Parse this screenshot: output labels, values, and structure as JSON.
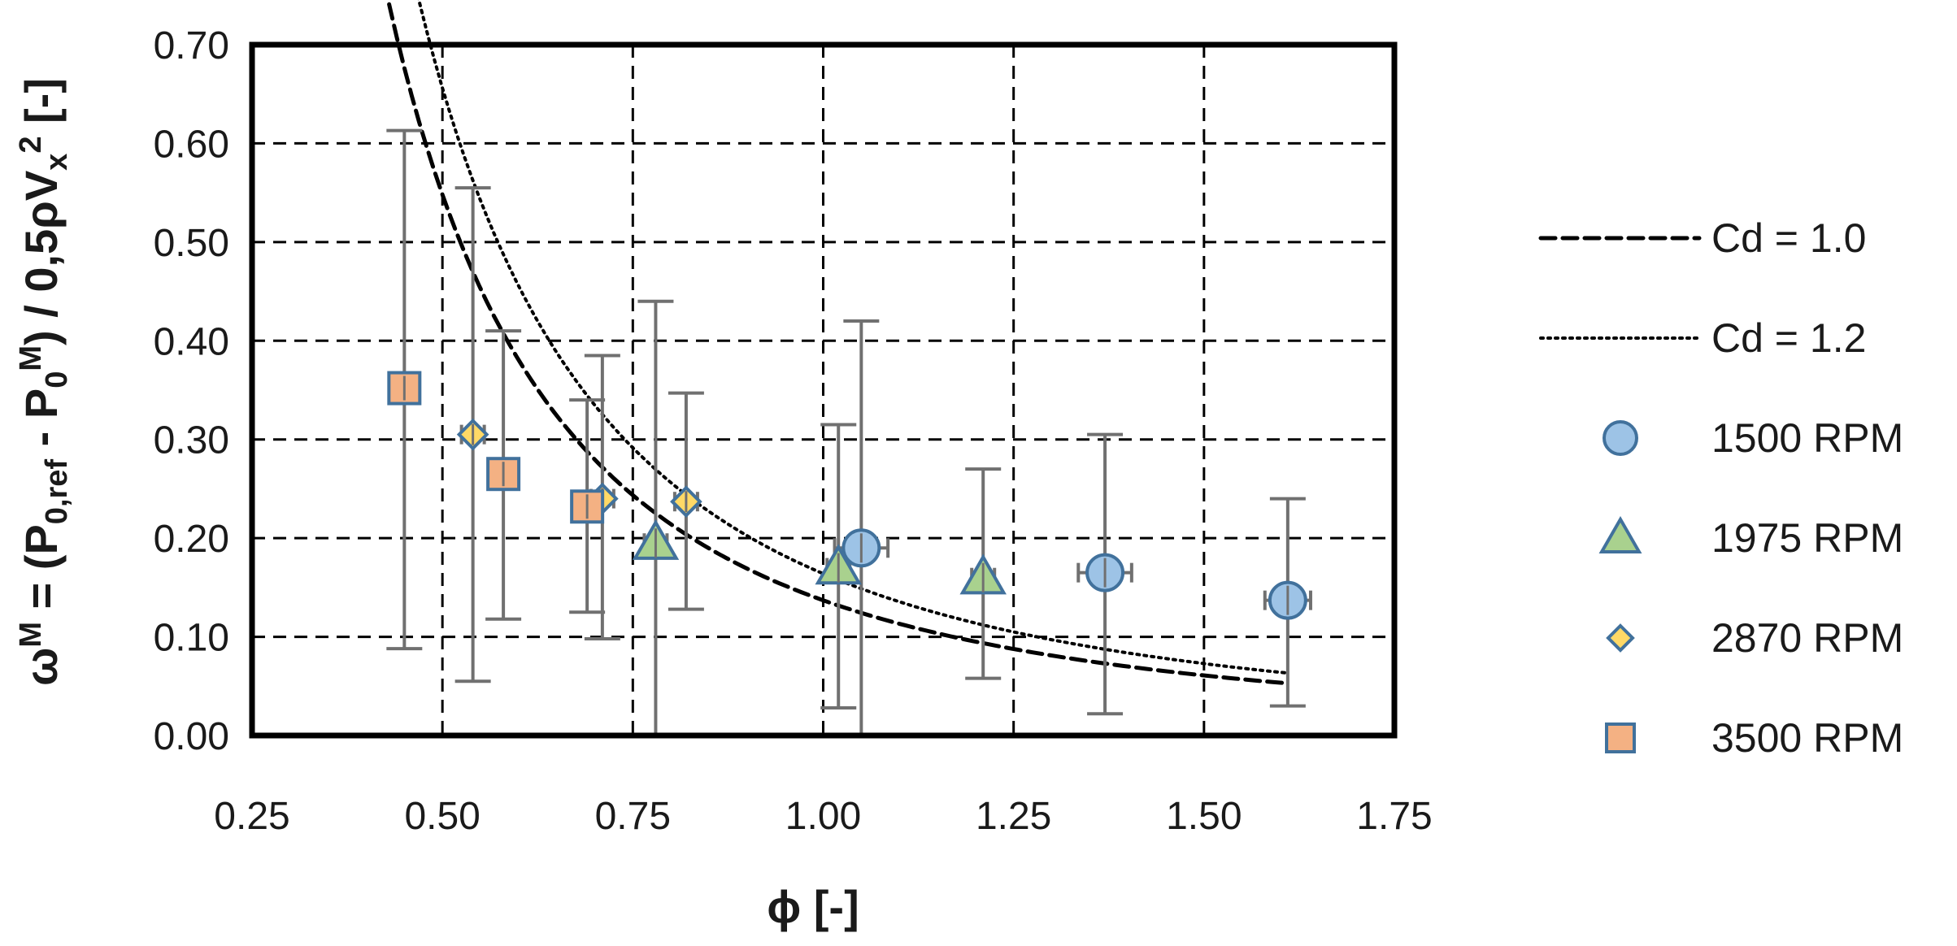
{
  "chart_data": {
    "type": "scatter",
    "xlabel": "ϕ [-]",
    "ylabel": "ω^M = (P_0,ref - P_0^M) / 0,5ρV_x^2 [-]",
    "xlim": [
      0.25,
      1.75
    ],
    "ylim": [
      0.0,
      0.7
    ],
    "x_ticks": [
      "0.25",
      "0.50",
      "0.75",
      "1.00",
      "1.25",
      "1.50",
      "1.75"
    ],
    "y_ticks": [
      "0.00",
      "0.10",
      "0.20",
      "0.30",
      "0.40",
      "0.50",
      "0.60",
      "0.70"
    ],
    "grid": true,
    "legend_position": "right",
    "curves": [
      {
        "name": "Cd = 1.0",
        "style": "dashed",
        "coef": 0.137
      },
      {
        "name": "Cd = 1.2",
        "style": "dotted",
        "coef": 0.164
      }
    ],
    "series": [
      {
        "name": "1500 RPM",
        "marker": "circle",
        "color": "#9DC3E6",
        "edge": "#41719C",
        "points": [
          {
            "x": 1.05,
            "y": 0.19,
            "ylow": 0.0,
            "yhigh": 0.42,
            "xerr": 0.035
          },
          {
            "x": 1.37,
            "y": 0.165,
            "ylow": 0.022,
            "yhigh": 0.305,
            "xerr": 0.035
          },
          {
            "x": 1.61,
            "y": 0.137,
            "ylow": 0.03,
            "yhigh": 0.24,
            "xerr": 0.03
          }
        ]
      },
      {
        "name": "1975 RPM",
        "marker": "triangle",
        "color": "#A9D18E",
        "edge": "#41719C",
        "points": [
          {
            "x": 0.78,
            "y": 0.195,
            "ylow": 0.0,
            "yhigh": 0.44,
            "xerr": 0.0
          },
          {
            "x": 1.02,
            "y": 0.17,
            "ylow": 0.028,
            "yhigh": 0.315,
            "xerr": 0.0
          },
          {
            "x": 1.21,
            "y": 0.16,
            "ylow": 0.058,
            "yhigh": 0.27,
            "xerr": 0.0
          }
        ]
      },
      {
        "name": "2870 RPM",
        "marker": "diamond",
        "color": "#FFD966",
        "edge": "#41719C",
        "points": [
          {
            "x": 0.54,
            "y": 0.305,
            "ylow": 0.055,
            "yhigh": 0.555,
            "xerr": 0.0
          },
          {
            "x": 0.71,
            "y": 0.24,
            "ylow": 0.098,
            "yhigh": 0.385,
            "xerr": 0.0
          },
          {
            "x": 0.82,
            "y": 0.237,
            "ylow": 0.128,
            "yhigh": 0.347,
            "xerr": 0.0
          }
        ]
      },
      {
        "name": "3500 RPM",
        "marker": "square",
        "color": "#F4B183",
        "edge": "#41719C",
        "points": [
          {
            "x": 0.45,
            "y": 0.352,
            "ylow": 0.088,
            "yhigh": 0.613,
            "xerr": 0.0
          },
          {
            "x": 0.58,
            "y": 0.265,
            "ylow": 0.118,
            "yhigh": 0.41,
            "xerr": 0.0
          },
          {
            "x": 0.69,
            "y": 0.232,
            "ylow": 0.125,
            "yhigh": 0.34,
            "xerr": 0.0
          }
        ]
      }
    ]
  }
}
